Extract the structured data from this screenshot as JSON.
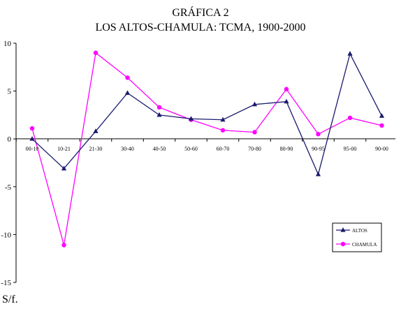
{
  "chart_data": {
    "type": "line",
    "title": "GRÁFICA 2",
    "subtitle": "LOS ALTOS-CHAMULA: TCMA, 1900-2000",
    "xlabel": "",
    "ylabel": "",
    "categories": [
      "00-10",
      "10-21",
      "21-30",
      "30-40",
      "40-50",
      "50-60",
      "60-70",
      "70-80",
      "80-90",
      "90-95",
      "95-00",
      "90-00"
    ],
    "ylim": [
      -15,
      10
    ],
    "yticks": [
      10,
      5,
      0,
      -5,
      -10,
      -15
    ],
    "ytick_labels": [
      "10",
      "5",
      "0",
      "-5",
      "-10",
      "-15"
    ],
    "grid": false,
    "legend_position": "bottom-right",
    "series": [
      {
        "name": "ALTOS",
        "marker": "triangle",
        "color": "#1a1a6e",
        "values": [
          0.0,
          -3.1,
          0.8,
          4.8,
          2.5,
          2.1,
          2.0,
          3.6,
          3.9,
          -3.7,
          8.9,
          2.4
        ]
      },
      {
        "name": "CHAMULA",
        "marker": "circle",
        "color": "#ff00ff",
        "values": [
          1.1,
          -11.1,
          9.0,
          6.4,
          3.3,
          2.0,
          0.9,
          0.7,
          5.2,
          0.5,
          2.2,
          1.4
        ]
      }
    ]
  },
  "footer": {
    "source": "S/f."
  }
}
